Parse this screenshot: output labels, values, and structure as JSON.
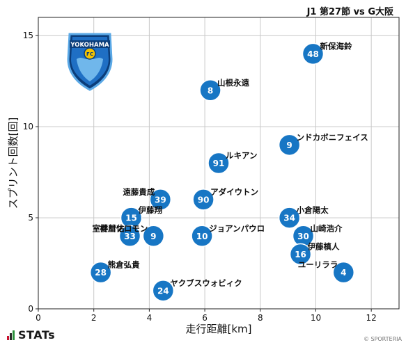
{
  "header": {
    "match_title": "J1 第27節 vs G大阪"
  },
  "footer": {
    "brand": "STATs",
    "copyright": "© SPORTERIA"
  },
  "logo": {
    "name": "yokohama-fc-crest",
    "text": "YOKOHAMA"
  },
  "colors": {
    "point": "#1776c4",
    "grid": "#c8c8c8",
    "axis": "#222222"
  },
  "chart_data": {
    "type": "scatter",
    "title": "",
    "xlabel": "走行距離[km]",
    "ylabel": "スプリント回数[回]",
    "xlim": [
      0,
      13
    ],
    "ylim": [
      0,
      16
    ],
    "xticks": [
      0,
      2,
      4,
      6,
      8,
      10,
      12
    ],
    "yticks": [
      0,
      5,
      10,
      15
    ],
    "grid": true,
    "points": [
      {
        "number": "48",
        "name": "新保海鈴",
        "x": 9.9,
        "y": 14,
        "label_pos": "right"
      },
      {
        "number": "8",
        "name": "山根永遠",
        "x": 6.2,
        "y": 12,
        "label_pos": "right"
      },
      {
        "number": "9",
        "name": "ンドカボニフェイス",
        "x": 9.05,
        "y": 9,
        "label_pos": "right"
      },
      {
        "number": "91",
        "name": "ルキアン",
        "x": 6.5,
        "y": 8,
        "label_pos": "right"
      },
      {
        "number": "39",
        "name": "遠藤貴成",
        "x": 4.4,
        "y": 6,
        "label_pos": "left"
      },
      {
        "number": "90",
        "name": "アダイウトン",
        "x": 5.95,
        "y": 6,
        "label_pos": "right"
      },
      {
        "number": "15",
        "name": "伊藤翔",
        "x": 3.35,
        "y": 5,
        "label_pos": "right"
      },
      {
        "number": "34",
        "name": "小倉陽太",
        "x": 9.05,
        "y": 5,
        "label_pos": "right"
      },
      {
        "number": "33",
        "name": "室井彗佑",
        "x": 3.3,
        "y": 4,
        "label_pos": "left"
      },
      {
        "number": "9",
        "name": "櫻川ソロモン",
        "x": 4.15,
        "y": 4,
        "label_pos": "left"
      },
      {
        "number": "10",
        "name": "ジョアンパウロ",
        "x": 5.9,
        "y": 4,
        "label_pos": "right"
      },
      {
        "number": "30",
        "name": "山崎浩介",
        "x": 9.55,
        "y": 4,
        "label_pos": "right"
      },
      {
        "number": "16",
        "name": "伊藤槙人",
        "x": 9.45,
        "y": 3,
        "label_pos": "right"
      },
      {
        "number": "28",
        "name": "熊倉弘貴",
        "x": 2.25,
        "y": 2,
        "label_pos": "right"
      },
      {
        "number": "4",
        "name": "ユーリララ",
        "x": 11.0,
        "y": 2,
        "label_pos": "left"
      },
      {
        "number": "24",
        "name": "ヤクブスウォビィク",
        "x": 4.5,
        "y": 1,
        "label_pos": "right"
      }
    ]
  }
}
